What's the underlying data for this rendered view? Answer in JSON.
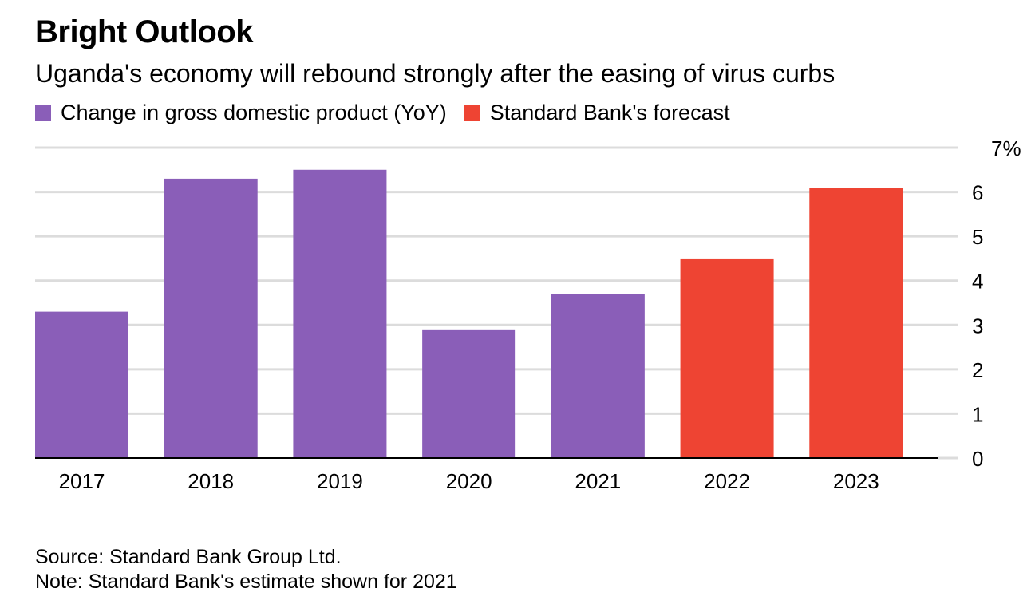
{
  "title": "Bright Outlook",
  "subtitle": "Uganda's economy will rebound strongly after the easing of virus curbs",
  "legend": [
    {
      "label": "Change in gross domestic product (YoY)",
      "color": "#8a5eb8"
    },
    {
      "label": "Standard Bank's forecast",
      "color": "#ee4433"
    }
  ],
  "source": "Source: Standard Bank Group Ltd.",
  "note": "Note: Standard Bank's estimate shown for 2021",
  "chart_data": {
    "type": "bar",
    "categories": [
      "2017",
      "2018",
      "2019",
      "2020",
      "2021",
      "2022",
      "2023"
    ],
    "values": [
      3.3,
      6.3,
      6.5,
      2.9,
      3.7,
      4.5,
      6.1
    ],
    "series_of_bar": [
      0,
      0,
      0,
      0,
      0,
      1,
      1
    ],
    "ylim": [
      0,
      7
    ],
    "y_ticks": [
      "0",
      "1",
      "2",
      "3",
      "4",
      "5",
      "6",
      "7%"
    ],
    "grid": true,
    "y_axis_side": "right",
    "legend_position": "top-left"
  }
}
